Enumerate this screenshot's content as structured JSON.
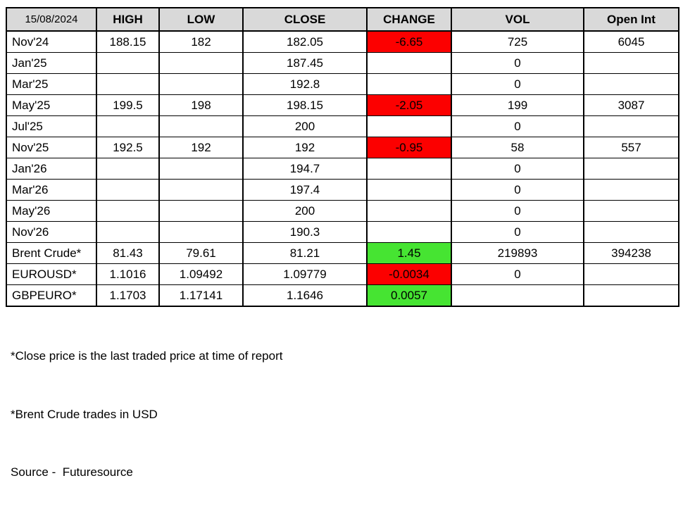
{
  "report": {
    "date": "15/08/2024",
    "columns": [
      "HIGH",
      "LOW",
      "CLOSE",
      "CHANGE",
      "VOL",
      "Open Int"
    ],
    "rows": [
      {
        "label": "Nov'24",
        "high": "188.15",
        "low": "182",
        "close": "182.05",
        "change": "-6.65",
        "change_state": "negative",
        "vol": "725",
        "open_int": "6045"
      },
      {
        "label": "Jan'25",
        "high": "",
        "low": "",
        "close": "187.45",
        "change": "",
        "change_state": "none",
        "vol": "0",
        "open_int": ""
      },
      {
        "label": "Mar'25",
        "high": "",
        "low": "",
        "close": "192.8",
        "change": "",
        "change_state": "none",
        "vol": "0",
        "open_int": ""
      },
      {
        "label": "May'25",
        "high": "199.5",
        "low": "198",
        "close": "198.15",
        "change": "-2.05",
        "change_state": "negative",
        "vol": "199",
        "open_int": "3087"
      },
      {
        "label": "Jul'25",
        "high": "",
        "low": "",
        "close": "200",
        "change": "",
        "change_state": "none",
        "vol": "0",
        "open_int": ""
      },
      {
        "label": "Nov'25",
        "high": "192.5",
        "low": "192",
        "close": "192",
        "change": "-0.95",
        "change_state": "negative",
        "vol": "58",
        "open_int": "557"
      },
      {
        "label": "Jan'26",
        "high": "",
        "low": "",
        "close": "194.7",
        "change": "",
        "change_state": "none",
        "vol": "0",
        "open_int": ""
      },
      {
        "label": "Mar'26",
        "high": "",
        "low": "",
        "close": "197.4",
        "change": "",
        "change_state": "none",
        "vol": "0",
        "open_int": ""
      },
      {
        "label": "May'26",
        "high": "",
        "low": "",
        "close": "200",
        "change": "",
        "change_state": "none",
        "vol": "0",
        "open_int": ""
      },
      {
        "label": "Nov'26",
        "high": "",
        "low": "",
        "close": "190.3",
        "change": "",
        "change_state": "none",
        "vol": "0",
        "open_int": ""
      },
      {
        "label": "Brent Crude*",
        "high": "81.43",
        "low": "79.61",
        "close": "81.21",
        "change": "1.45",
        "change_state": "positive",
        "vol": "219893",
        "open_int": "394238"
      },
      {
        "label": "EUROUSD*",
        "high": "1.1016",
        "low": "1.09492",
        "close": "1.09779",
        "change": "-0.0034",
        "change_state": "negative",
        "vol": "0",
        "open_int": ""
      },
      {
        "label": "GBPEURO*",
        "high": "1.1703",
        "low": "1.17141",
        "close": "1.1646",
        "change": "0.0057",
        "change_state": "positive",
        "vol": "",
        "open_int": ""
      }
    ],
    "footnotes": [
      "*Close price is the last traded price at time of report",
      "*Brent Crude trades in USD",
      "Source -  Futuresource"
    ],
    "colors": {
      "negative_bg": "#fc0000",
      "positive_bg": "#46e432",
      "header_bg": "#d9d9d9",
      "border": "#000000"
    }
  }
}
